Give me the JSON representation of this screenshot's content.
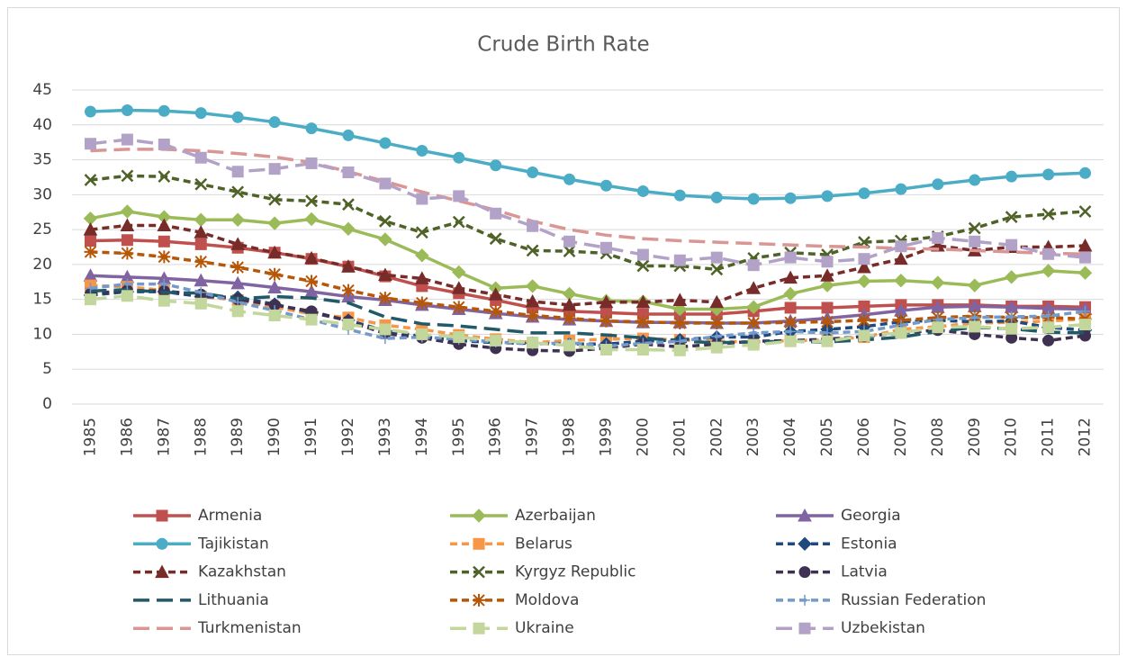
{
  "chart_data": {
    "type": "line",
    "title": "Crude Birth Rate",
    "categories": [
      "1985",
      "1986",
      "1987",
      "1988",
      "1989",
      "1990",
      "1991",
      "1992",
      "1993",
      "1994",
      "1995",
      "1996",
      "1997",
      "1998",
      "1999",
      "2000",
      "2001",
      "2002",
      "2003",
      "2004",
      "2005",
      "2006",
      "2007",
      "2008",
      "2009",
      "2010",
      "2011",
      "2012"
    ],
    "ylim": [
      0,
      45
    ],
    "yticks": [
      0,
      5,
      10,
      15,
      20,
      25,
      30,
      35,
      40,
      45
    ],
    "grid": true,
    "legend": "bottom",
    "series": [
      {
        "name": "Armenia",
        "color": "#c0504d",
        "dash": "solid",
        "marker": "square",
        "values": [
          23.4,
          23.5,
          23.3,
          22.9,
          22.4,
          21.7,
          20.8,
          19.7,
          18.3,
          16.9,
          15.9,
          14.9,
          13.8,
          13.3,
          13.1,
          12.9,
          12.9,
          12.9,
          13.3,
          13.8,
          13.8,
          14.0,
          14.2,
          14.2,
          14.2,
          14.0,
          14.0,
          13.9
        ]
      },
      {
        "name": "Azerbaijan",
        "color": "#9bbb59",
        "dash": "solid",
        "marker": "diamond",
        "values": [
          26.6,
          27.6,
          26.8,
          26.4,
          26.4,
          25.9,
          26.5,
          25.1,
          23.6,
          21.3,
          18.9,
          16.6,
          16.9,
          15.8,
          14.8,
          14.7,
          13.6,
          13.6,
          13.9,
          15.8,
          17.0,
          17.6,
          17.7,
          17.4,
          17.0,
          18.2,
          19.1,
          18.8
        ]
      },
      {
        "name": "Georgia",
        "color": "#8064a2",
        "dash": "solid",
        "marker": "triangle",
        "values": [
          18.4,
          18.2,
          18.0,
          17.7,
          17.3,
          16.7,
          16.1,
          15.4,
          14.9,
          14.2,
          13.6,
          13.0,
          12.5,
          12.1,
          11.9,
          11.7,
          11.7,
          11.6,
          11.6,
          11.9,
          12.3,
          12.8,
          13.4,
          13.9,
          14.0,
          13.9,
          13.7,
          13.6
        ]
      },
      {
        "name": "Tajikistan",
        "color": "#4bacc6",
        "dash": "solid",
        "marker": "circle",
        "values": [
          41.9,
          42.1,
          42.0,
          41.7,
          41.1,
          40.4,
          39.5,
          38.5,
          37.4,
          36.3,
          35.3,
          34.2,
          33.2,
          32.2,
          31.3,
          30.5,
          29.9,
          29.6,
          29.4,
          29.5,
          29.8,
          30.2,
          30.8,
          31.5,
          32.1,
          32.6,
          32.9,
          33.1
        ]
      },
      {
        "name": "Belarus",
        "color": "#f79646",
        "dash": "dash",
        "marker": "square",
        "values": [
          17.0,
          16.8,
          16.3,
          15.4,
          14.9,
          13.9,
          12.9,
          12.4,
          11.3,
          10.7,
          9.9,
          9.3,
          8.8,
          9.1,
          9.3,
          9.4,
          9.2,
          9.0,
          8.9,
          9.1,
          9.2,
          9.6,
          10.7,
          11.1,
          11.6,
          11.7,
          11.9,
          12.2
        ]
      },
      {
        "name": "Estonia",
        "color": "#1f497d",
        "dash": "dash",
        "marker": "diamond",
        "values": [
          15.6,
          16.1,
          16.1,
          15.4,
          15.3,
          14.3,
          13.1,
          12.0,
          10.5,
          9.7,
          9.1,
          8.8,
          8.7,
          8.6,
          8.6,
          9.0,
          9.2,
          9.6,
          9.6,
          10.4,
          10.7,
          11.1,
          11.8,
          12.0,
          11.8,
          11.9,
          11.0,
          10.6
        ]
      },
      {
        "name": "Kazakhstan",
        "color": "#772c2a",
        "dash": "dash",
        "marker": "triangle",
        "values": [
          25.0,
          25.6,
          25.6,
          24.6,
          22.9,
          21.7,
          20.9,
          19.7,
          18.5,
          18.0,
          16.6,
          15.7,
          14.7,
          14.2,
          14.6,
          14.6,
          14.9,
          14.6,
          16.6,
          18.1,
          18.4,
          19.6,
          20.8,
          22.7,
          22.0,
          22.5,
          22.5,
          22.7
        ]
      },
      {
        "name": "Kyrgyz Republic",
        "color": "#4f6228",
        "dash": "dash",
        "marker": "x",
        "values": [
          32.1,
          32.7,
          32.6,
          31.5,
          30.4,
          29.3,
          29.1,
          28.6,
          26.2,
          24.6,
          26.1,
          23.7,
          22.0,
          21.9,
          21.6,
          19.8,
          19.8,
          19.3,
          20.9,
          21.7,
          21.4,
          23.2,
          23.4,
          24.0,
          25.2,
          26.8,
          27.2,
          27.6
        ]
      },
      {
        "name": "Latvia",
        "color": "#3f3151",
        "dash": "dash",
        "marker": "circle",
        "values": [
          15.8,
          16.3,
          16.2,
          15.7,
          15.0,
          14.2,
          13.3,
          11.9,
          10.1,
          9.5,
          8.6,
          8.0,
          7.7,
          7.6,
          8.0,
          8.6,
          8.2,
          8.6,
          9.0,
          9.1,
          9.3,
          9.7,
          10.2,
          10.6,
          10.0,
          9.5,
          9.1,
          9.8
        ]
      },
      {
        "name": "Lithuania",
        "color": "#215968",
        "dash": "longdash",
        "marker": "none",
        "values": [
          16.2,
          16.4,
          16.0,
          15.9,
          15.1,
          15.4,
          15.2,
          14.5,
          12.5,
          11.5,
          11.2,
          10.7,
          10.2,
          10.2,
          9.9,
          9.5,
          9.0,
          8.8,
          8.9,
          9.0,
          8.9,
          9.2,
          9.6,
          10.4,
          11.0,
          10.8,
          10.3,
          10.2
        ]
      },
      {
        "name": "Moldova",
        "color": "#b65708",
        "dash": "dash",
        "marker": "star",
        "values": [
          21.8,
          21.6,
          21.1,
          20.4,
          19.6,
          18.6,
          17.6,
          16.3,
          15.2,
          14.5,
          13.9,
          13.3,
          12.7,
          12.3,
          11.9,
          11.8,
          11.6,
          11.6,
          11.6,
          11.7,
          11.8,
          12.0,
          12.0,
          12.4,
          12.6,
          12.4,
          12.4,
          12.2
        ]
      },
      {
        "name": "Russian Federation",
        "color": "#729aca",
        "dash": "dash",
        "marker": "plus",
        "values": [
          16.6,
          17.2,
          17.2,
          16.0,
          14.6,
          13.4,
          12.1,
          10.7,
          9.4,
          9.6,
          9.3,
          8.9,
          8.6,
          8.8,
          8.3,
          8.7,
          9.0,
          9.7,
          10.2,
          10.4,
          10.2,
          10.4,
          11.3,
          12.1,
          12.4,
          12.5,
          12.6,
          13.3
        ]
      },
      {
        "name": "Turkmenistan",
        "color": "#d99694",
        "dash": "longdash",
        "marker": "none",
        "values": [
          36.3,
          36.5,
          36.5,
          36.3,
          35.9,
          35.4,
          34.6,
          33.3,
          31.9,
          30.4,
          29.1,
          27.8,
          26.2,
          25.0,
          24.2,
          23.7,
          23.4,
          23.2,
          23.0,
          22.8,
          22.6,
          22.5,
          22.3,
          22.2,
          22.0,
          21.8,
          21.6,
          21.5
        ]
      },
      {
        "name": "Ukraine",
        "color": "#c3d69b",
        "dash": "longdash",
        "marker": "square",
        "values": [
          15.0,
          15.5,
          14.8,
          14.4,
          13.3,
          12.7,
          12.1,
          11.4,
          10.7,
          10.0,
          9.6,
          9.1,
          8.8,
          8.4,
          7.8,
          7.8,
          7.7,
          8.1,
          8.5,
          9.0,
          9.0,
          9.8,
          10.2,
          11.0,
          11.1,
          10.8,
          11.0,
          11.4
        ]
      },
      {
        "name": "Uzbekistan",
        "color": "#b3a2c7",
        "dash": "longdash",
        "marker": "square",
        "values": [
          37.3,
          37.9,
          37.2,
          35.3,
          33.3,
          33.7,
          34.5,
          33.2,
          31.6,
          29.4,
          29.8,
          27.3,
          25.5,
          23.3,
          22.4,
          21.4,
          20.6,
          21.0,
          19.9,
          21.0,
          20.4,
          20.8,
          22.6,
          23.8,
          23.3,
          22.8,
          21.5,
          21.0
        ]
      }
    ]
  }
}
